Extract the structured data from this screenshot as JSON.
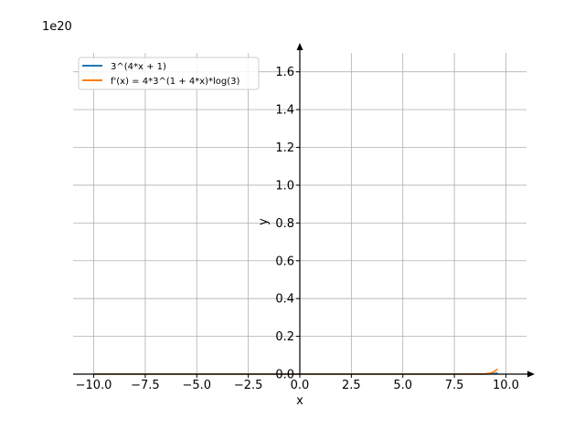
{
  "chart_data": {
    "type": "line",
    "xlabel": "x",
    "ylabel": "y",
    "offset_label": "1e20",
    "xlim": [
      -11.0,
      11.0
    ],
    "ylim": [
      0,
      1.7
    ],
    "x_ticks": [
      -10.0,
      -7.5,
      -5.0,
      -2.5,
      0.0,
      2.5,
      5.0,
      7.5,
      10.0
    ],
    "x_tick_labels": [
      "−10.0",
      "−7.5",
      "−5.0",
      "−2.5",
      "0.0",
      "2.5",
      "5.0",
      "7.5",
      "10.0"
    ],
    "y_ticks": [
      0.0,
      0.2,
      0.4,
      0.6,
      0.8,
      1.0,
      1.2,
      1.4,
      1.6
    ],
    "y_tick_labels": [
      "0.0",
      "0.2",
      "0.4",
      "0.6",
      "0.8",
      "1.0",
      "1.2",
      "1.4",
      "1.6"
    ],
    "grid": true,
    "legend_position": "top-left",
    "series": [
      {
        "name": "3^(4*x + 1)",
        "color": "#1f77b4",
        "x": [
          -10.0,
          -8.0,
          -6.0,
          -4.0,
          -2.0,
          0.0,
          2.0,
          4.0,
          6.0,
          7.0,
          7.5,
          8.0,
          8.25,
          8.5,
          8.75,
          9.0,
          9.2,
          9.4,
          9.6
        ],
        "y": [
          0,
          0,
          0,
          0,
          0,
          0,
          0,
          0,
          0,
          0,
          0,
          1e-05,
          3e-05,
          8e-05,
          0.0002,
          0.0005,
          0.0011,
          0.0025,
          0.0061
        ]
      },
      {
        "name": "f'(x) = 4*3^(1 + 4*x)*log(3)",
        "color": "#ff7f0e",
        "x": [
          -10.0,
          -8.0,
          -6.0,
          -4.0,
          -2.0,
          0.0,
          2.0,
          4.0,
          6.0,
          7.0,
          7.5,
          8.0,
          8.25,
          8.5,
          8.75,
          9.0,
          9.2,
          9.4,
          9.6
        ],
        "y": [
          0,
          0,
          0,
          0,
          0,
          0,
          0,
          0,
          0,
          0,
          0,
          4e-05,
          0.00013,
          0.00036,
          0.001,
          0.0023,
          0.0049,
          0.0111,
          0.027
        ]
      }
    ]
  }
}
